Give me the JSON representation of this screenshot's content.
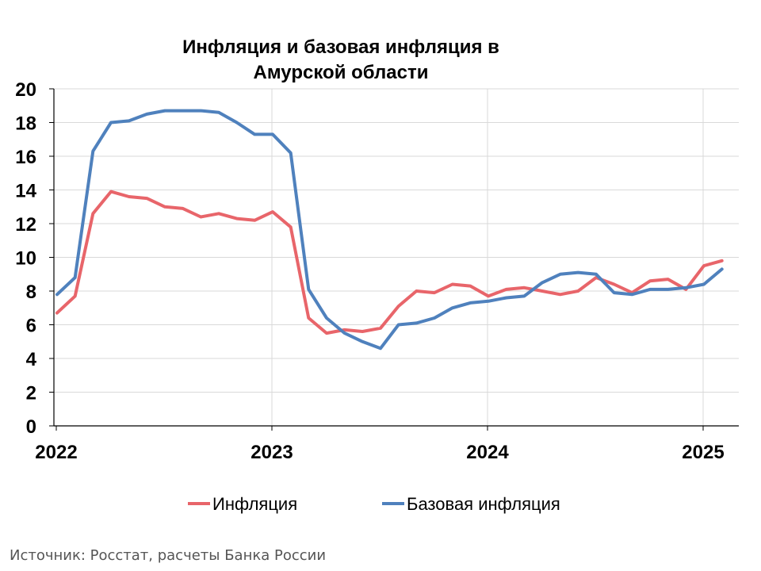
{
  "chart_data": {
    "type": "line",
    "title_line1": "Инфляция и базовая инфляция в",
    "title_line2": "Амурской области",
    "ylim": [
      0,
      20
    ],
    "yticks": [
      "0",
      "2",
      "4",
      "6",
      "8",
      "10",
      "12",
      "14",
      "16",
      "18",
      "20"
    ],
    "xticks": [
      "2022",
      "2023",
      "2024",
      "2025"
    ],
    "grid": true,
    "legend_position": "bottom",
    "x": [
      "2022-01",
      "2022-02",
      "2022-03",
      "2022-04",
      "2022-05",
      "2022-06",
      "2022-07",
      "2022-08",
      "2022-09",
      "2022-10",
      "2022-11",
      "2022-12",
      "2023-01",
      "2023-02",
      "2023-03",
      "2023-04",
      "2023-05",
      "2023-06",
      "2023-07",
      "2023-08",
      "2023-09",
      "2023-10",
      "2023-11",
      "2023-12",
      "2024-01",
      "2024-02",
      "2024-03",
      "2024-04",
      "2024-05",
      "2024-06",
      "2024-07",
      "2024-08",
      "2024-09",
      "2024-10",
      "2024-11",
      "2024-12",
      "2025-01",
      "2025-02"
    ],
    "series": [
      {
        "name": "Инфляция",
        "color": "#E8656A",
        "values": [
          6.7,
          7.7,
          12.6,
          13.9,
          13.6,
          13.5,
          13.0,
          12.9,
          12.4,
          12.6,
          12.3,
          12.2,
          12.7,
          11.8,
          6.4,
          5.5,
          5.7,
          5.6,
          5.8,
          7.1,
          8.0,
          7.9,
          8.4,
          8.3,
          7.7,
          8.1,
          8.2,
          8.0,
          7.8,
          8.0,
          8.8,
          8.4,
          7.9,
          8.6,
          8.7,
          8.1,
          9.5,
          9.8
        ]
      },
      {
        "name": "Базовая инфляция",
        "color": "#4F81BD",
        "values": [
          7.8,
          8.8,
          16.3,
          18.0,
          18.1,
          18.5,
          18.7,
          18.7,
          18.7,
          18.6,
          18.0,
          17.3,
          17.3,
          16.2,
          8.1,
          6.4,
          5.5,
          5.0,
          4.6,
          6.0,
          6.1,
          6.4,
          7.0,
          7.3,
          7.4,
          7.6,
          7.7,
          8.5,
          9.0,
          9.1,
          9.0,
          7.9,
          7.8,
          8.1,
          8.1,
          8.2,
          8.4,
          9.3
        ]
      }
    ]
  },
  "source_note": "Источник: Росстат, расчеты Банка России"
}
